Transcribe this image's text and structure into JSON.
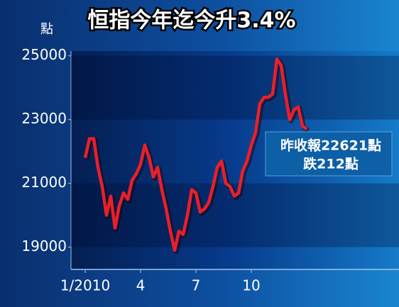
{
  "chart_data": {
    "type": "line",
    "title": "恒指今年迄今升3.4%",
    "y_label": "點",
    "categories": [
      "1/2010",
      null,
      null,
      null,
      null,
      null,
      null,
      null,
      null,
      null,
      null,
      null,
      null,
      "4",
      null,
      null,
      null,
      null,
      null,
      null,
      null,
      null,
      null,
      null,
      null,
      null,
      "7",
      null,
      null,
      null,
      null,
      null,
      null,
      null,
      null,
      null,
      null,
      null,
      null,
      "10",
      null,
      null,
      null,
      null,
      null,
      null,
      null,
      null,
      null,
      null,
      null,
      null,
      null
    ],
    "series": [
      {
        "name": "恒指",
        "color": "#e8202a",
        "values": [
          21800,
          22400,
          22400,
          21500,
          20900,
          20000,
          20600,
          19600,
          20300,
          20700,
          20500,
          21100,
          21300,
          21600,
          22200,
          21800,
          21200,
          21500,
          20800,
          20200,
          19500,
          18900,
          19500,
          19400,
          20000,
          20800,
          20700,
          20100,
          20200,
          20400,
          20900,
          21500,
          21700,
          21000,
          20900,
          20600,
          20700,
          21400,
          21700,
          22200,
          22600,
          23500,
          23700,
          23700,
          23800,
          24900,
          24700,
          23800,
          23000,
          23300,
          23400,
          22800,
          22700
        ]
      }
    ],
    "ylim": [
      18300,
      25150
    ],
    "yticks": [
      19000,
      21000,
      23000,
      25000
    ],
    "annotation": [
      "昨收報22621點",
      "跌212點"
    ]
  }
}
